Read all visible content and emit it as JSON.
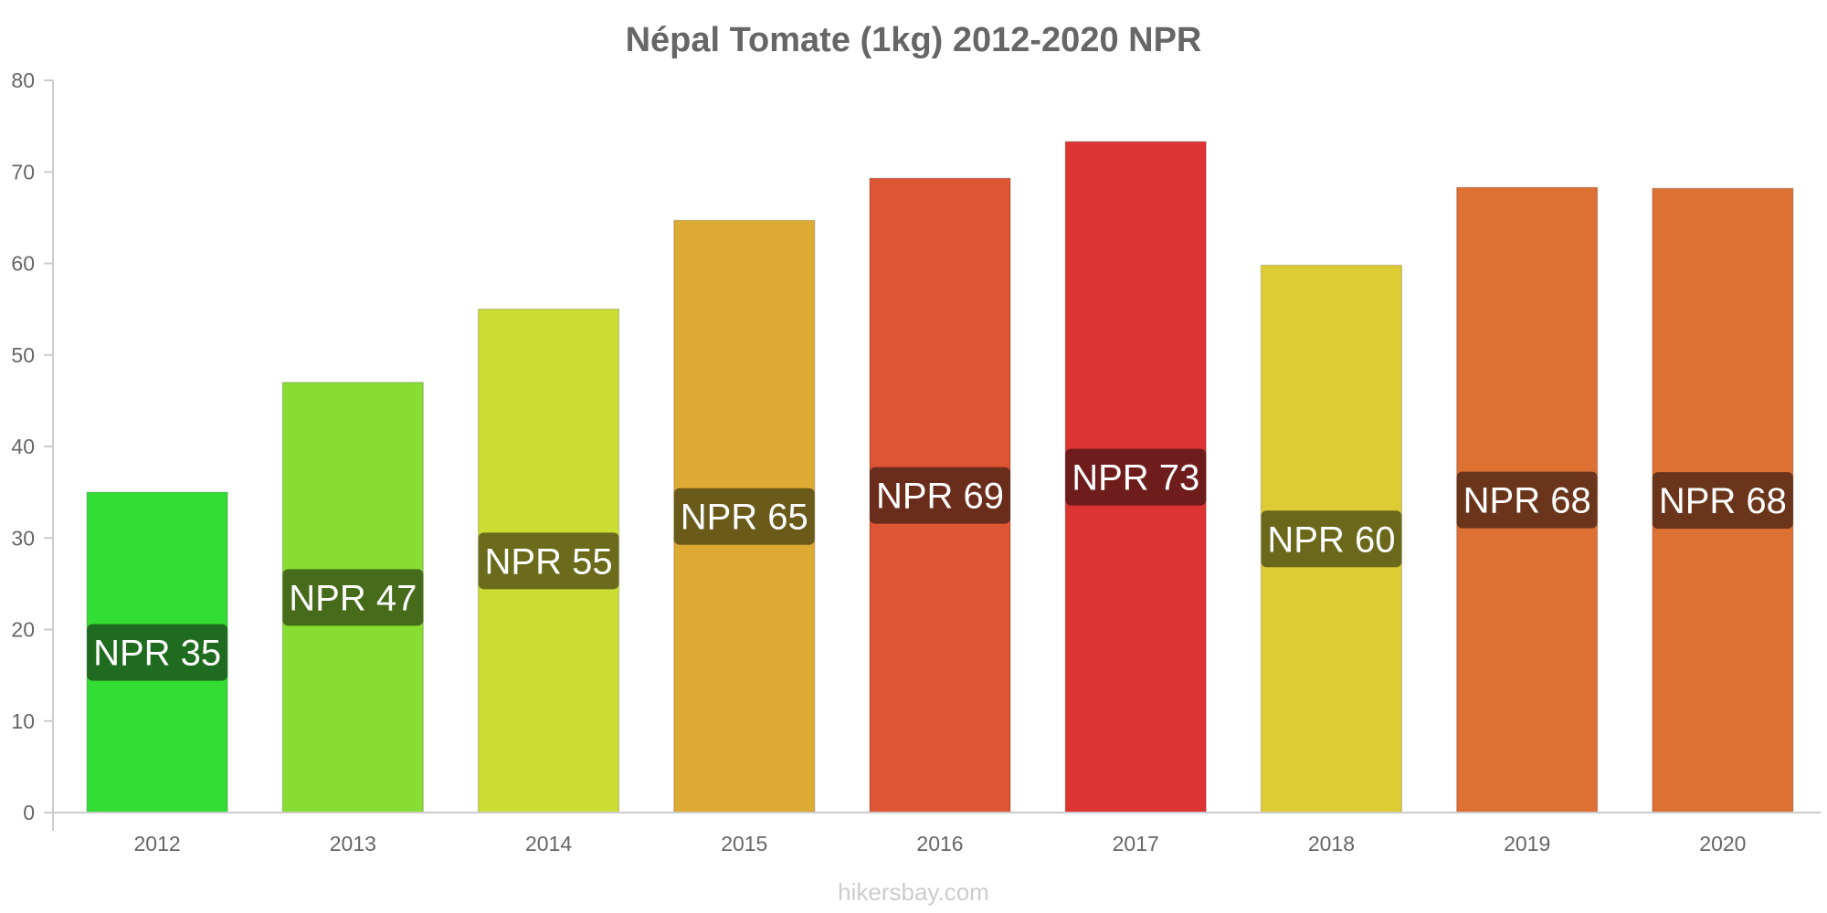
{
  "chart_data": {
    "type": "bar",
    "title": "Népal Tomate (1kg) 2012-2020 NPR",
    "xlabel": "",
    "ylabel": "",
    "ylim": [
      0,
      80
    ],
    "yticks": [
      "0",
      "10",
      "20",
      "30",
      "40",
      "50",
      "60",
      "70",
      "80"
    ],
    "grid": false,
    "categories": [
      "2012",
      "2013",
      "2014",
      "2015",
      "2016",
      "2017",
      "2018",
      "2019",
      "2020"
    ],
    "values": [
      35,
      47,
      55,
      64.7,
      69.3,
      73.3,
      59.8,
      68.3,
      68.2
    ],
    "data_labels": [
      "NPR 35",
      "NPR 47",
      "NPR 55",
      "NPR 65",
      "NPR 69",
      "NPR 73",
      "NPR 60",
      "NPR 68",
      "NPR 68"
    ],
    "bar_colors": [
      "#33dd33",
      "#88dd33",
      "#ccdd33",
      "#ddaa33",
      "#dd5533",
      "#dd3333",
      "#ddcc33",
      "#dd7033",
      "#dd7033"
    ],
    "label_colors": [
      "#1f6b1f",
      "#456b1b",
      "#6b6b1b",
      "#6b5b1b",
      "#6b2d1b",
      "#6e1c1c",
      "#6b671b",
      "#6b351b",
      "#6b351b"
    ]
  },
  "watermark": "hikersbay.com"
}
